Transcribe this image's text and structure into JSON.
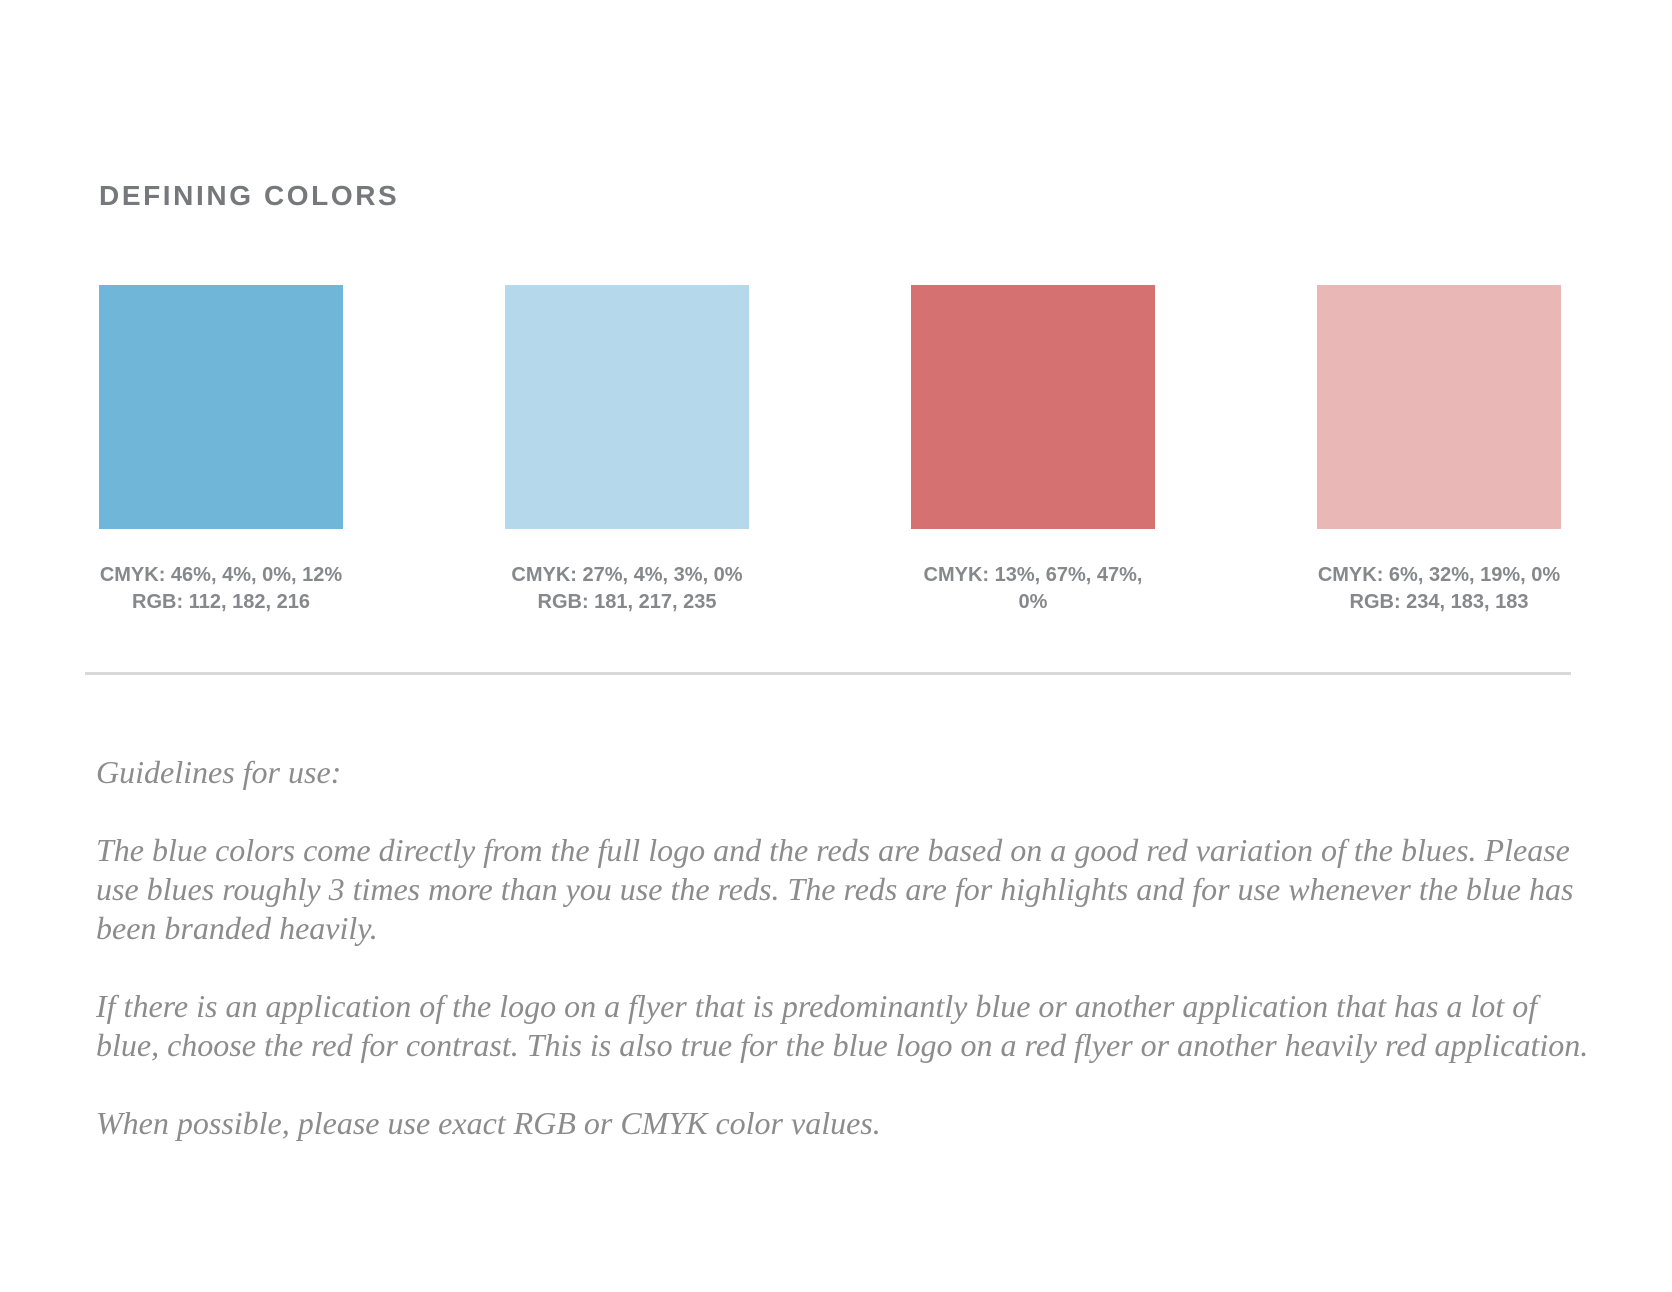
{
  "heading": "DEFINING COLORS",
  "swatches": [
    {
      "hex": "#70b6d8",
      "line1": "CMYK: 46%, 4%, 0%, 12%",
      "line2": "RGB: 112, 182, 216"
    },
    {
      "hex": "#b5d9eb",
      "line1": "CMYK: 27%, 4%, 3%, 0%",
      "line2": "RGB: 181, 217, 235"
    },
    {
      "hex": "#d67171",
      "line1": "CMYK: 13%, 67%, 47%,",
      "line2": "0%"
    },
    {
      "hex": "#eab7b7",
      "line1": "CMYK: 6%, 32%, 19%, 0%",
      "line2": "RGB: 234, 183, 183"
    }
  ],
  "guidelines": {
    "title": "Guidelines for use:",
    "paragraph_1": "The blue colors come directly from the full logo and the reds are based on a good red variation of the blues. Please use blues roughly 3 times more than you use the reds. The reds are for highlights and for use whenever the blue has been branded heavily.",
    "paragraph_2": "If there is an application of the logo on a flyer that is predominantly blue or another application that has a lot of blue, choose the red for contrast. This is also true for the blue logo on a red flyer or another heavily red application.",
    "paragraph_3": "When possible, please use exact RGB or CMYK color values."
  }
}
